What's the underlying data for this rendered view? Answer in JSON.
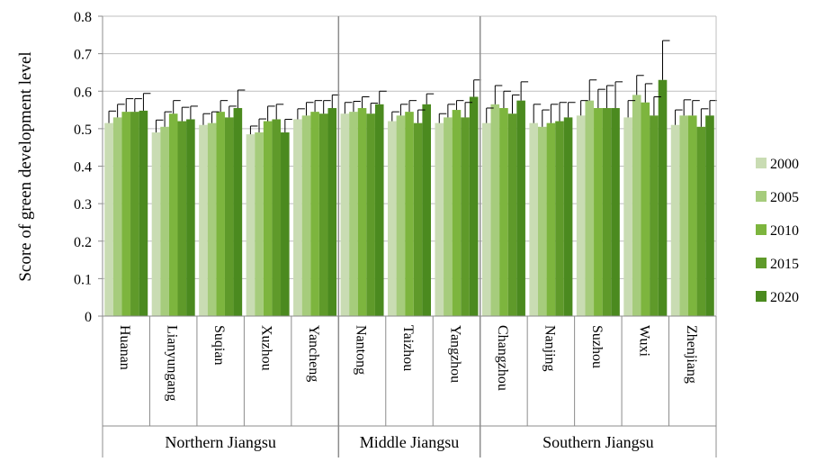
{
  "chart_data": {
    "type": "bar",
    "ylabel": "Score of green development level",
    "ylim": [
      0,
      0.8
    ],
    "yticks": [
      "0",
      "0.1",
      "0.2",
      "0.3",
      "0.4",
      "0.5",
      "0.6",
      "0.7",
      "0.8"
    ],
    "grid": true,
    "legend_position": "right",
    "error_bars": true,
    "categories": [
      "Huanan",
      "Lianyungang",
      "Suqian",
      "Xuzhou",
      "Yancheng",
      "Nantong",
      "Taizhou",
      "Yangzhou",
      "Changzhou",
      "Nanjing",
      "Suzhou",
      "Wuxi",
      "Zhenjiang"
    ],
    "groups": [
      {
        "label": "Northern Jiangsu",
        "count": 5
      },
      {
        "label": "Middle Jiangsu",
        "count": 3
      },
      {
        "label": "Southern Jiangsu",
        "count": 5
      }
    ],
    "series": [
      {
        "name": "2000",
        "color": "#c9dcb3",
        "values": [
          0.515,
          0.49,
          0.51,
          0.485,
          0.525,
          0.54,
          0.52,
          0.515,
          0.515,
          0.515,
          0.535,
          0.53,
          0.51
        ],
        "errors": [
          0.032,
          0.033,
          0.03,
          0.022,
          0.028,
          0.03,
          0.025,
          0.025,
          0.04,
          0.05,
          0.04,
          0.045,
          0.04
        ]
      },
      {
        "name": "2005",
        "color": "#a6cc7c",
        "values": [
          0.53,
          0.505,
          0.515,
          0.49,
          0.535,
          0.545,
          0.535,
          0.53,
          0.565,
          0.505,
          0.575,
          0.59,
          0.535
        ],
        "errors": [
          0.035,
          0.04,
          0.03,
          0.036,
          0.035,
          0.028,
          0.03,
          0.035,
          0.05,
          0.045,
          0.055,
          0.052,
          0.042
        ]
      },
      {
        "name": "2010",
        "color": "#7db53e",
        "values": [
          0.545,
          0.54,
          0.545,
          0.52,
          0.545,
          0.555,
          0.545,
          0.55,
          0.555,
          0.515,
          0.555,
          0.57,
          0.535
        ],
        "errors": [
          0.035,
          0.035,
          0.03,
          0.04,
          0.03,
          0.03,
          0.03,
          0.025,
          0.045,
          0.05,
          0.05,
          0.05,
          0.04
        ]
      },
      {
        "name": "2015",
        "color": "#5f9a2a",
        "values": [
          0.545,
          0.52,
          0.53,
          0.525,
          0.54,
          0.54,
          0.515,
          0.53,
          0.54,
          0.52,
          0.555,
          0.535,
          0.505
        ],
        "errors": [
          0.035,
          0.037,
          0.03,
          0.04,
          0.035,
          0.028,
          0.035,
          0.04,
          0.05,
          0.05,
          0.06,
          0.05,
          0.048
        ]
      },
      {
        "name": "2020",
        "color": "#4b8a1f",
        "values": [
          0.548,
          0.525,
          0.555,
          0.49,
          0.555,
          0.565,
          0.565,
          0.585,
          0.575,
          0.53,
          0.555,
          0.63,
          0.535
        ],
        "errors": [
          0.046,
          0.035,
          0.048,
          0.035,
          0.035,
          0.035,
          0.028,
          0.045,
          0.05,
          0.04,
          0.07,
          0.105,
          0.04
        ]
      }
    ]
  }
}
